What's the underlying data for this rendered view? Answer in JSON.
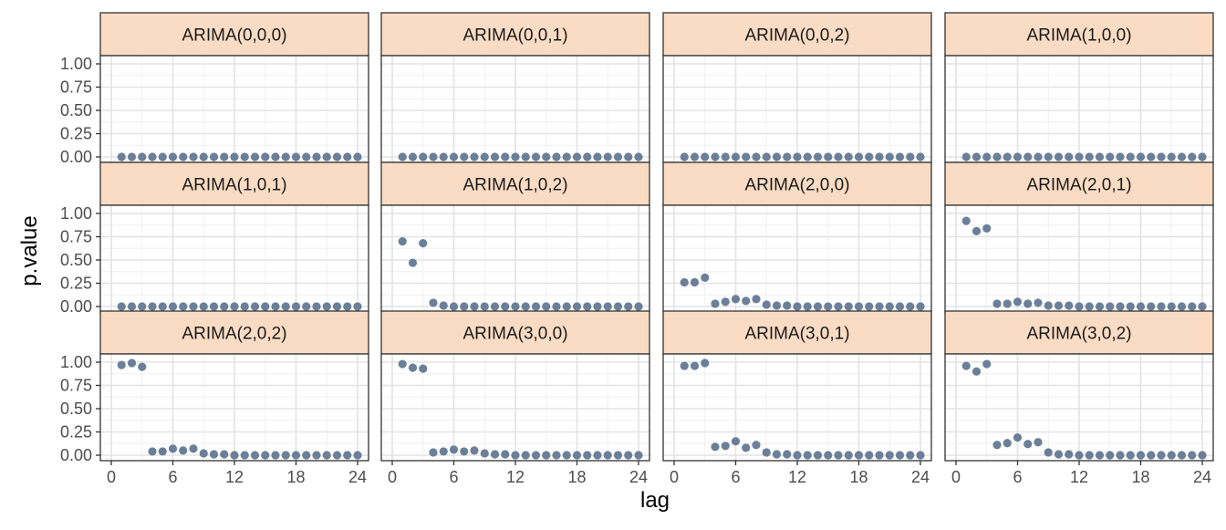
{
  "chart_data": {
    "type": "scatter",
    "facet_layout": "3x4 grid",
    "xlabel": "lag",
    "ylabel": "p.value",
    "xlim": [
      0,
      24
    ],
    "ylim": [
      0,
      1
    ],
    "x_ticks": [
      0,
      6,
      12,
      18,
      24
    ],
    "y_ticks": [
      0,
      0.25,
      0.5,
      0.75,
      1
    ],
    "y_tick_labels": [
      "0.00",
      "0.25",
      "0.50",
      "0.75",
      "1.00"
    ],
    "x_tick_labels": [
      "0",
      "6",
      "12",
      "18",
      "24"
    ],
    "grid": true,
    "lags": [
      1,
      2,
      3,
      4,
      5,
      6,
      7,
      8,
      9,
      10,
      11,
      12,
      13,
      14,
      15,
      16,
      17,
      18,
      19,
      20,
      21,
      22,
      23,
      24
    ],
    "point_color": "#6b7f99",
    "strip_color": "#fadcc4",
    "panels": [
      {
        "title": "ARIMA(0,0,0)",
        "values": [
          0,
          0,
          0,
          0,
          0,
          0,
          0,
          0,
          0,
          0,
          0,
          0,
          0,
          0,
          0,
          0,
          0,
          0,
          0,
          0,
          0,
          0,
          0,
          0
        ]
      },
      {
        "title": "ARIMA(0,0,1)",
        "values": [
          0,
          0,
          0,
          0,
          0,
          0,
          0,
          0,
          0,
          0,
          0,
          0,
          0,
          0,
          0,
          0,
          0,
          0,
          0,
          0,
          0,
          0,
          0,
          0
        ]
      },
      {
        "title": "ARIMA(0,0,2)",
        "values": [
          0,
          0,
          0,
          0,
          0,
          0,
          0,
          0,
          0,
          0,
          0,
          0,
          0,
          0,
          0,
          0,
          0,
          0,
          0,
          0,
          0,
          0,
          0,
          0
        ]
      },
      {
        "title": "ARIMA(1,0,0)",
        "values": [
          0,
          0,
          0,
          0,
          0,
          0,
          0,
          0,
          0,
          0,
          0,
          0,
          0,
          0,
          0,
          0,
          0,
          0,
          0,
          0,
          0,
          0,
          0,
          0
        ]
      },
      {
        "title": "ARIMA(1,0,1)",
        "values": [
          0,
          0,
          0,
          0,
          0,
          0,
          0,
          0,
          0,
          0,
          0,
          0,
          0,
          0,
          0,
          0,
          0,
          0,
          0,
          0,
          0,
          0,
          0,
          0
        ]
      },
      {
        "title": "ARIMA(1,0,2)",
        "values": [
          0.7,
          0.47,
          0.68,
          0.04,
          0.01,
          0,
          0,
          0,
          0,
          0,
          0,
          0,
          0,
          0,
          0,
          0,
          0,
          0,
          0,
          0,
          0,
          0,
          0,
          0
        ]
      },
      {
        "title": "ARIMA(2,0,0)",
        "values": [
          0.26,
          0.26,
          0.31,
          0.03,
          0.05,
          0.08,
          0.06,
          0.08,
          0.02,
          0.01,
          0.01,
          0,
          0,
          0,
          0,
          0,
          0,
          0,
          0,
          0,
          0,
          0,
          0,
          0
        ]
      },
      {
        "title": "ARIMA(2,0,1)",
        "values": [
          0.92,
          0.81,
          0.84,
          0.03,
          0.03,
          0.05,
          0.03,
          0.04,
          0.01,
          0.01,
          0.01,
          0,
          0,
          0,
          0,
          0,
          0,
          0,
          0,
          0,
          0,
          0,
          0,
          0
        ]
      },
      {
        "title": "ARIMA(2,0,2)",
        "values": [
          0.97,
          0.99,
          0.95,
          0.04,
          0.04,
          0.07,
          0.05,
          0.07,
          0.02,
          0.01,
          0.01,
          0,
          0,
          0,
          0,
          0,
          0,
          0,
          0,
          0,
          0,
          0,
          0,
          0
        ]
      },
      {
        "title": "ARIMA(3,0,0)",
        "values": [
          0.98,
          0.94,
          0.93,
          0.03,
          0.04,
          0.06,
          0.04,
          0.05,
          0.02,
          0.01,
          0.01,
          0,
          0,
          0,
          0,
          0,
          0,
          0,
          0,
          0,
          0,
          0,
          0,
          0
        ]
      },
      {
        "title": "ARIMA(3,0,1)",
        "values": [
          0.96,
          0.96,
          0.99,
          0.09,
          0.1,
          0.15,
          0.08,
          0.11,
          0.03,
          0.01,
          0.01,
          0,
          0,
          0,
          0,
          0,
          0,
          0,
          0,
          0,
          0,
          0,
          0,
          0
        ]
      },
      {
        "title": "ARIMA(3,0,2)",
        "values": [
          0.96,
          0.9,
          0.98,
          0.11,
          0.13,
          0.19,
          0.12,
          0.14,
          0.03,
          0.01,
          0.01,
          0,
          0,
          0,
          0,
          0,
          0,
          0,
          0,
          0,
          0,
          0,
          0,
          0
        ]
      }
    ]
  }
}
